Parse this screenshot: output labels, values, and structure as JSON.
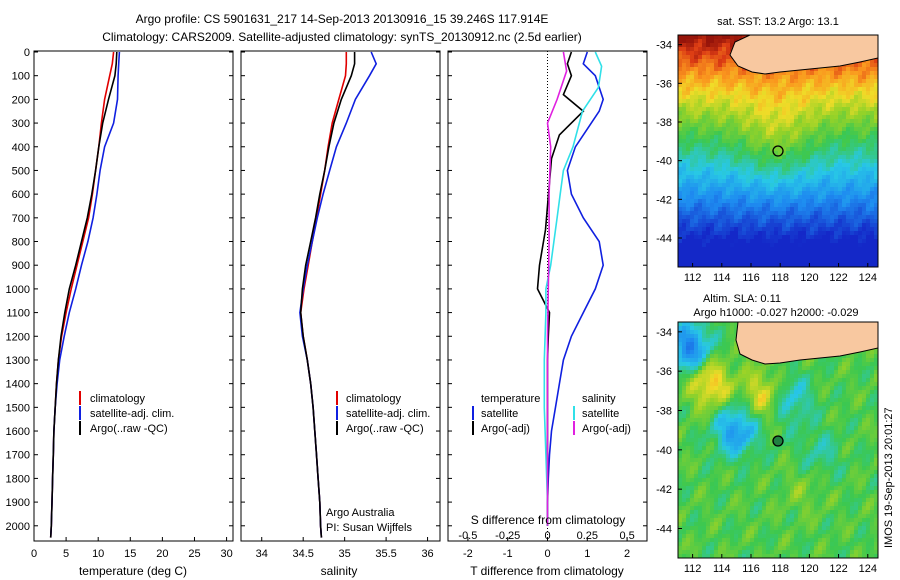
{
  "titles": {
    "line1": "Argo profile: CS 5901631_217 14-Sep-2013 20130916_15 39.246S 117.914E",
    "line2": "Climatology: CARS2009. Satellite-adjusted climatology: synTS_20130912.nc (2.5d earlier)"
  },
  "side_label": "IMOS 19-Sep-2013 20:01:27",
  "credits": {
    "line1": "Argo Australia",
    "line2": "PI: Susan Wijffels"
  },
  "colors": {
    "climatology": "#e00000",
    "satellite": "#1020e0",
    "argo": "#000000",
    "s_satellite": "#30e0e8",
    "s_argo": "#e020e0",
    "land": "#f8c8a0",
    "frame": "#000000"
  },
  "panels": {
    "temp": {
      "xlabel": "temperature (deg C)",
      "xticks": [
        "0",
        "5",
        "10",
        "15",
        "20",
        "25",
        "30"
      ],
      "legend": [
        "climatology",
        "satellite-adj. clim.",
        "Argo(..raw -QC)"
      ]
    },
    "sal": {
      "xlabel": "salinity",
      "xticks": [
        "34",
        "34.5",
        "35",
        "35.5",
        "36"
      ],
      "legend": [
        "climatology",
        "satellite-adj. clim.",
        "Argo(..raw -QC)"
      ]
    },
    "diff": {
      "xlabel": "T difference from climatology",
      "xticks": [
        "-2",
        "-1",
        "0",
        "1",
        "2"
      ],
      "top_label": "S difference from climatology",
      "top_ticks": [
        "-0.5",
        "-0.25",
        "0",
        "0.25",
        "0.5"
      ],
      "legend_t_head": "temperature",
      "legend_s_head": "salinity",
      "legend_t": [
        "satellite",
        "Argo(-adj)"
      ],
      "legend_s": [
        "satellite",
        "Argo(-adj)"
      ]
    }
  },
  "depth_ticks": [
    "0",
    "100",
    "200",
    "300",
    "400",
    "500",
    "600",
    "700",
    "800",
    "900",
    "1000",
    "1100",
    "1200",
    "1300",
    "1400",
    "1500",
    "1600",
    "1700",
    "1800",
    "1900",
    "2000"
  ],
  "maps": {
    "sst": {
      "title": "sat. SST: 13.2  Argo: 13.1",
      "lon_ticks": [
        "112",
        "114",
        "116",
        "118",
        "120",
        "122",
        "124"
      ],
      "lat_ticks": [
        "-34",
        "-36",
        "-38",
        "-40",
        "-42",
        "-44"
      ]
    },
    "sla": {
      "title1": "Altim. SLA: 0.11",
      "title2": "Argo h1000: -0.027  h2000: -0.029",
      "lon_ticks": [
        "112",
        "114",
        "116",
        "118",
        "120",
        "122",
        "124"
      ],
      "lat_ticks": [
        "-34",
        "-36",
        "-38",
        "-40",
        "-42",
        "-44"
      ]
    },
    "float_position": {
      "lon": 117.914,
      "lat": -39.246
    }
  },
  "chart_data": [
    {
      "type": "line",
      "ylabel": "",
      "xlabel": "temperature (deg C)",
      "xlim": [
        0,
        31
      ],
      "ylim": [
        2060,
        0
      ],
      "series": [
        {
          "name": "climatology",
          "x": [
            12.4,
            12.2,
            11.8,
            11.0,
            10.5,
            10.1,
            9.6,
            9.1,
            8.5,
            7.6,
            6.7,
            5.8,
            5.0,
            4.3,
            3.8,
            3.5,
            3.3,
            3.1,
            3.0,
            2.9,
            2.8,
            2.7,
            2.6
          ],
          "y": [
            0,
            50,
            100,
            200,
            300,
            400,
            500,
            600,
            700,
            800,
            900,
            1000,
            1100,
            1200,
            1300,
            1400,
            1500,
            1600,
            1700,
            1800,
            1900,
            2000,
            2050
          ]
        },
        {
          "name": "satellite-adj. clim.",
          "x": [
            13.3,
            13.2,
            13.1,
            13.0,
            12.4,
            11.0,
            10.3,
            9.8,
            9.2,
            8.4,
            7.4,
            6.5,
            5.5,
            4.7,
            4.0,
            3.6,
            3.3,
            3.1,
            3.0,
            2.9,
            2.8,
            2.7,
            2.6
          ],
          "y": [
            0,
            50,
            100,
            200,
            300,
            400,
            500,
            600,
            700,
            800,
            900,
            1000,
            1100,
            1200,
            1300,
            1400,
            1500,
            1600,
            1700,
            1800,
            1900,
            2000,
            2050
          ]
        },
        {
          "name": "Argo(..raw -QC)",
          "x": [
            12.9,
            12.8,
            12.6,
            11.6,
            10.7,
            10.1,
            9.6,
            9.0,
            8.3,
            7.4,
            6.5,
            5.5,
            4.8,
            4.2,
            3.8,
            3.5,
            3.3,
            3.1,
            3.0,
            2.9,
            2.8,
            2.7,
            2.6
          ],
          "y": [
            0,
            50,
            100,
            200,
            300,
            400,
            500,
            600,
            700,
            800,
            900,
            1000,
            1100,
            1200,
            1300,
            1400,
            1500,
            1600,
            1700,
            1800,
            1900,
            2000,
            2050
          ]
        }
      ]
    },
    {
      "type": "line",
      "xlabel": "salinity",
      "xlim": [
        33.75,
        36.15
      ],
      "ylim": [
        2060,
        0
      ],
      "series": [
        {
          "name": "climatology",
          "x": [
            35.02,
            35.02,
            35.01,
            34.93,
            34.85,
            34.8,
            34.76,
            34.71,
            34.66,
            34.61,
            34.56,
            34.51,
            34.47,
            34.5,
            34.55,
            34.59,
            34.62,
            34.64,
            34.66,
            34.68,
            34.7,
            34.71,
            34.72
          ],
          "y": [
            0,
            50,
            100,
            200,
            300,
            400,
            500,
            600,
            700,
            800,
            900,
            1000,
            1100,
            1200,
            1300,
            1400,
            1500,
            1600,
            1700,
            1800,
            1900,
            2000,
            2050
          ]
        },
        {
          "name": "satellite-adj. clim.",
          "x": [
            35.32,
            35.38,
            35.3,
            35.13,
            35.02,
            34.9,
            34.82,
            34.74,
            34.67,
            34.61,
            34.55,
            34.5,
            34.46,
            34.49,
            34.55,
            34.59,
            34.62,
            34.64,
            34.66,
            34.68,
            34.7,
            34.71,
            34.72
          ],
          "y": [
            0,
            50,
            100,
            200,
            300,
            400,
            500,
            600,
            700,
            800,
            900,
            1000,
            1100,
            1200,
            1300,
            1400,
            1500,
            1600,
            1700,
            1800,
            1900,
            2000,
            2050
          ]
        },
        {
          "name": "Argo(..raw -QC)",
          "x": [
            35.12,
            35.12,
            35.08,
            34.96,
            34.87,
            34.81,
            34.76,
            34.7,
            34.65,
            34.59,
            34.53,
            34.49,
            34.47,
            34.5,
            34.55,
            34.59,
            34.62,
            34.64,
            34.66,
            34.68,
            34.7,
            34.71,
            34.72
          ],
          "y": [
            0,
            50,
            100,
            200,
            300,
            400,
            500,
            600,
            700,
            800,
            900,
            1000,
            1100,
            1200,
            1300,
            1400,
            1500,
            1600,
            1700,
            1800,
            1900,
            2000,
            2050
          ]
        }
      ]
    },
    {
      "type": "line",
      "xlabel": "T difference from climatology",
      "xlim": [
        -2.5,
        2.5
      ],
      "ylim": [
        2060,
        0
      ],
      "series": [
        {
          "name": "satellite",
          "x": [
            1.0,
            0.9,
            1.2,
            1.4,
            1.3,
            0.7,
            0.5,
            0.6,
            0.9,
            1.3,
            1.4,
            1.2,
            0.9,
            0.6,
            0.4,
            0.3,
            0.2,
            0.1,
            0.05,
            0.02,
            0.0,
            0.0
          ],
          "y": [
            0,
            50,
            100,
            200,
            250,
            400,
            500,
            600,
            700,
            800,
            900,
            1000,
            1100,
            1200,
            1300,
            1400,
            1500,
            1600,
            1700,
            1800,
            1900,
            2000
          ]
        },
        {
          "name": "Argo(-adj)",
          "x": [
            0.6,
            0.5,
            0.6,
            0.4,
            0.9,
            0.3,
            0.1,
            0.05,
            0.0,
            -0.05,
            -0.2,
            -0.25,
            0.05,
            0.02,
            0.0,
            0.0,
            0.0,
            0.0,
            0.0,
            0.0,
            0.0
          ],
          "y": [
            0,
            50,
            100,
            180,
            250,
            350,
            450,
            550,
            650,
            750,
            900,
            1000,
            1100,
            1200,
            1300,
            1400,
            1500,
            1600,
            1700,
            1800,
            2000
          ]
        }
      ]
    },
    {
      "type": "line",
      "xlabel": "S difference from climatology",
      "xlim": [
        -0.625,
        0.625
      ],
      "ylim": [
        2060,
        0
      ],
      "series": [
        {
          "name": "satellite",
          "x": [
            0.3,
            0.34,
            0.32,
            0.22,
            0.16,
            0.1,
            0.08,
            0.06,
            0.04,
            0.02,
            -0.01,
            -0.01,
            -0.02,
            -0.02,
            -0.01,
            0.0,
            0.0
          ],
          "y": [
            0,
            60,
            150,
            250,
            400,
            500,
            600,
            700,
            800,
            900,
            1000,
            1100,
            1300,
            1500,
            1700,
            1900,
            2000
          ]
        },
        {
          "name": "Argo(-adj)",
          "x": [
            0.1,
            0.12,
            0.06,
            0.0,
            0.02,
            0.01,
            0.01,
            0.005,
            0.0,
            0.0,
            0.0,
            0.0
          ],
          "y": [
            0,
            80,
            200,
            300,
            400,
            600,
            800,
            1000,
            1200,
            1500,
            1800,
            2000
          ]
        }
      ]
    }
  ]
}
